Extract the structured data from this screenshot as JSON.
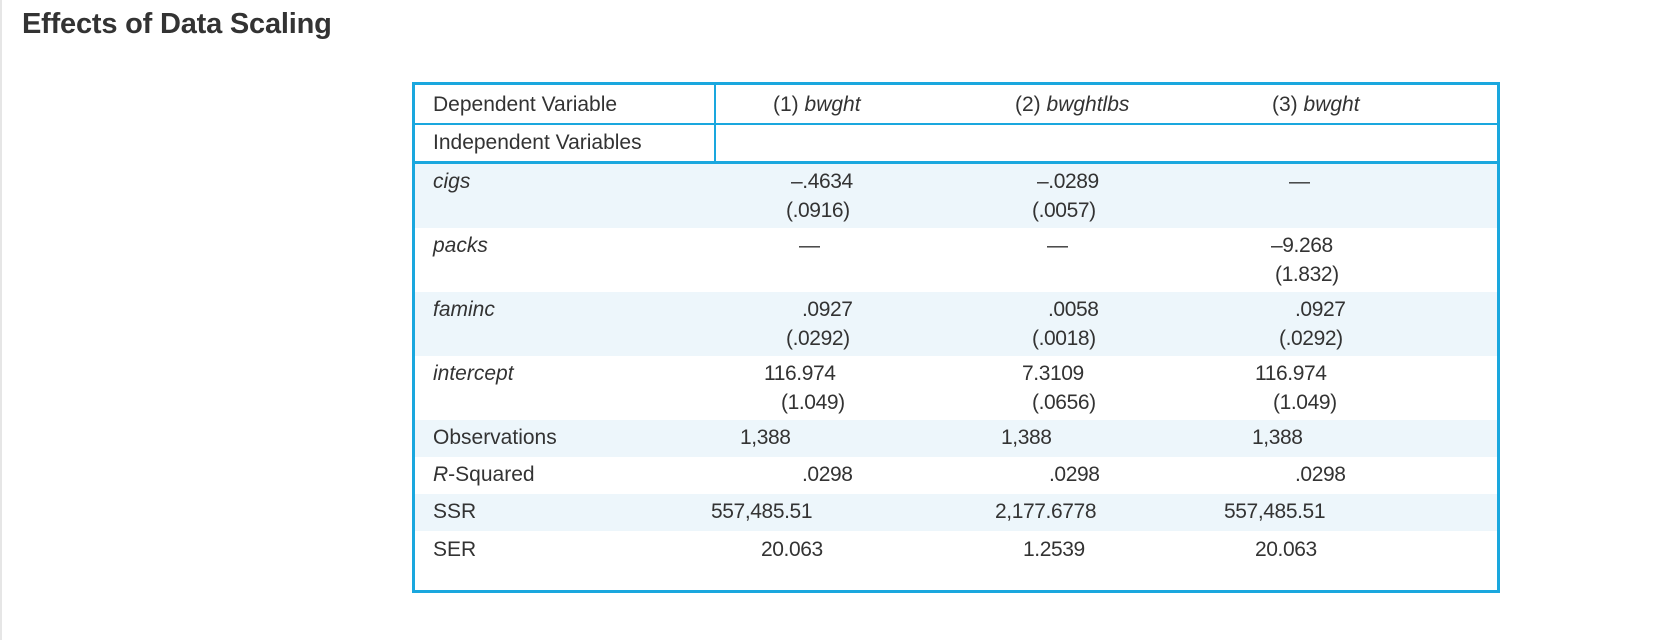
{
  "page": {
    "title": "Effects of Data Scaling"
  },
  "table": {
    "header": {
      "dep_label": "Dependent Variable",
      "indep_label": "Independent Variables",
      "columns": [
        {
          "num": "(1)",
          "var": "bwght"
        },
        {
          "num": "(2)",
          "var": "bwghtlbs"
        },
        {
          "num": "(3)",
          "var": "bwght"
        }
      ]
    },
    "rows": [
      {
        "label": "cigs",
        "c1": "–.4634",
        "c1se": "(.0916)",
        "c2": "–.0289",
        "c2se": "(.0057)",
        "c3": "—",
        "c3se": ""
      },
      {
        "label": "packs",
        "c1": "—",
        "c1se": "",
        "c2": "—",
        "c2se": "",
        "c3": "–9.268",
        "c3se": "(1.832)"
      },
      {
        "label": "faminc",
        "c1": ".0927",
        "c1se": "(.0292)",
        "c2": ".0058",
        "c2se": "(.0018)",
        "c3": ".0927",
        "c3se": "(.0292)"
      },
      {
        "label": "intercept",
        "c1": "116.974",
        "c1se": "(1.049)",
        "c2": "7.3109",
        "c2se": "(.0656)",
        "c3": "116.974",
        "c3se": "(1.049)"
      }
    ],
    "stats": [
      {
        "label": "Observations",
        "c1": "1,388",
        "c2": "1,388",
        "c3": "1,388"
      },
      {
        "label_prefix": "R",
        "label_rest": "-Squared",
        "c1": ".0298",
        "c2": ".0298",
        "c3": ".0298"
      },
      {
        "label": "SSR",
        "c1": "557,485.51",
        "c2": "2,177.6778",
        "c3": "557,485.51"
      },
      {
        "label": "SER",
        "c1": "20.063",
        "c2": "1.2539",
        "c3": "20.063"
      }
    ]
  }
}
